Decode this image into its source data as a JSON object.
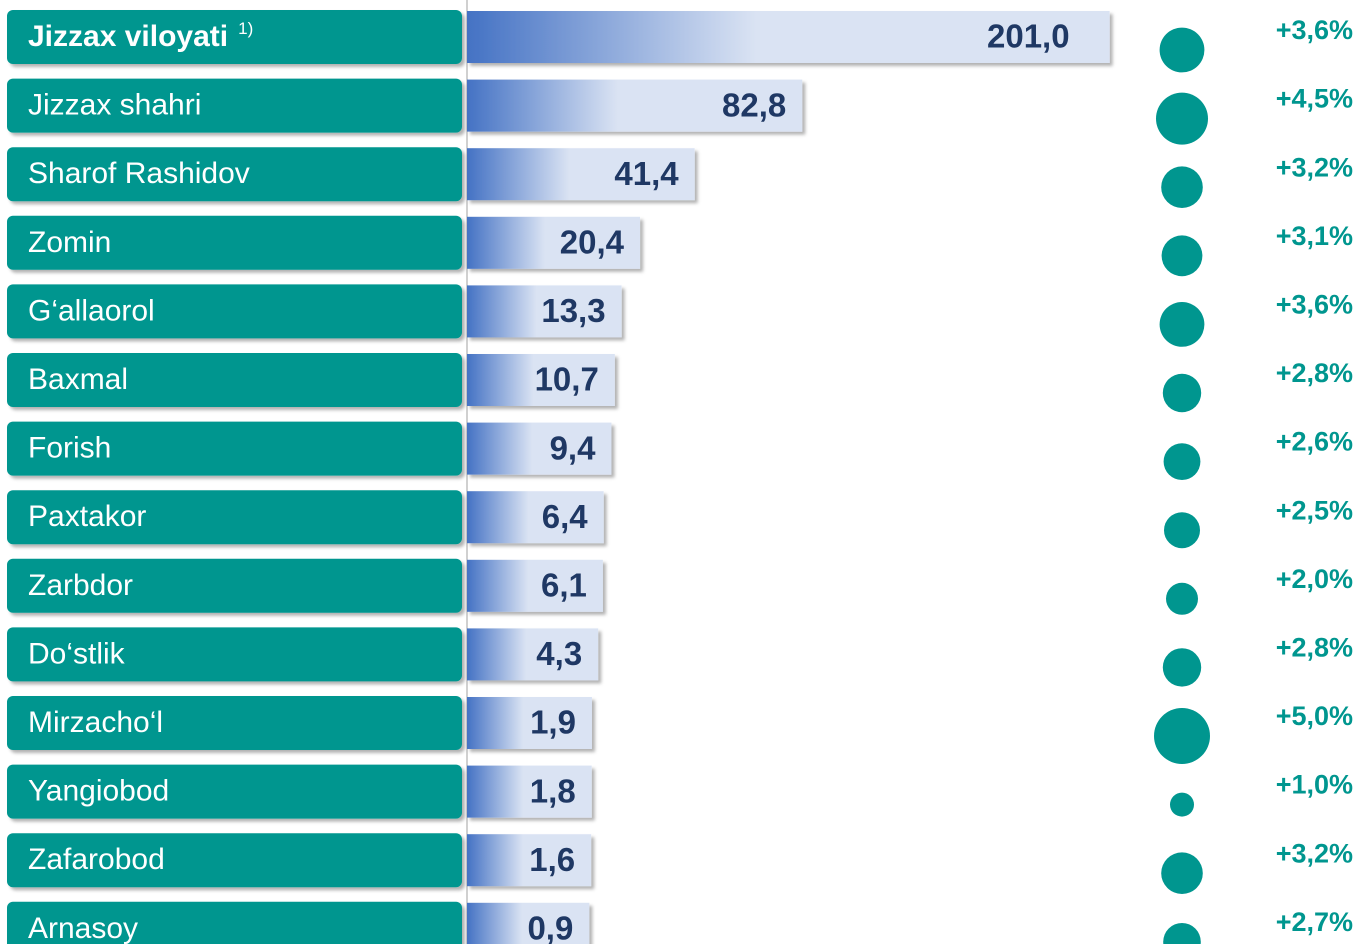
{
  "chart_data": {
    "type": "bar",
    "categories": [
      "Jizzax viloyati",
      "Jizzax shahri",
      "Sharof Rashidov",
      "Zomin",
      "G‘allaorol",
      "Baxmal",
      "Forish",
      "Paxtakor",
      "Zarbdor",
      "Do‘stlik",
      "Mirzacho‘l",
      "Yangiobod",
      "Zafarobod",
      "Arnasoy"
    ],
    "first_category_note": "1)",
    "values": [
      201.0,
      82.8,
      41.4,
      20.4,
      13.3,
      10.7,
      9.4,
      6.4,
      6.1,
      4.3,
      1.9,
      1.8,
      1.6,
      0.9
    ],
    "value_labels": [
      "201,0",
      "82,8",
      "41,4",
      "20,4",
      "13,3",
      "10,7",
      "9,4",
      "6,4",
      "6,1",
      "4,3",
      "1,9",
      "1,8",
      "1,6",
      "0,9"
    ],
    "change_values": [
      3.6,
      4.5,
      3.2,
      3.1,
      3.6,
      2.8,
      2.6,
      2.5,
      2.0,
      2.8,
      5.0,
      1.0,
      3.2,
      2.7
    ],
    "change_labels": [
      "+3,6%",
      "+4,5%",
      "+3,2%",
      "+3,1%",
      "+3,6%",
      "+2,8%",
      "+2,6%",
      "+2,5%",
      "+2,0%",
      "+2,8%",
      "+5,0%",
      "+1,0%",
      "+3,2%",
      "+2,7%"
    ],
    "color": "#4472c4",
    "label_color": "#00968f",
    "bubble_color": "#00968f"
  }
}
